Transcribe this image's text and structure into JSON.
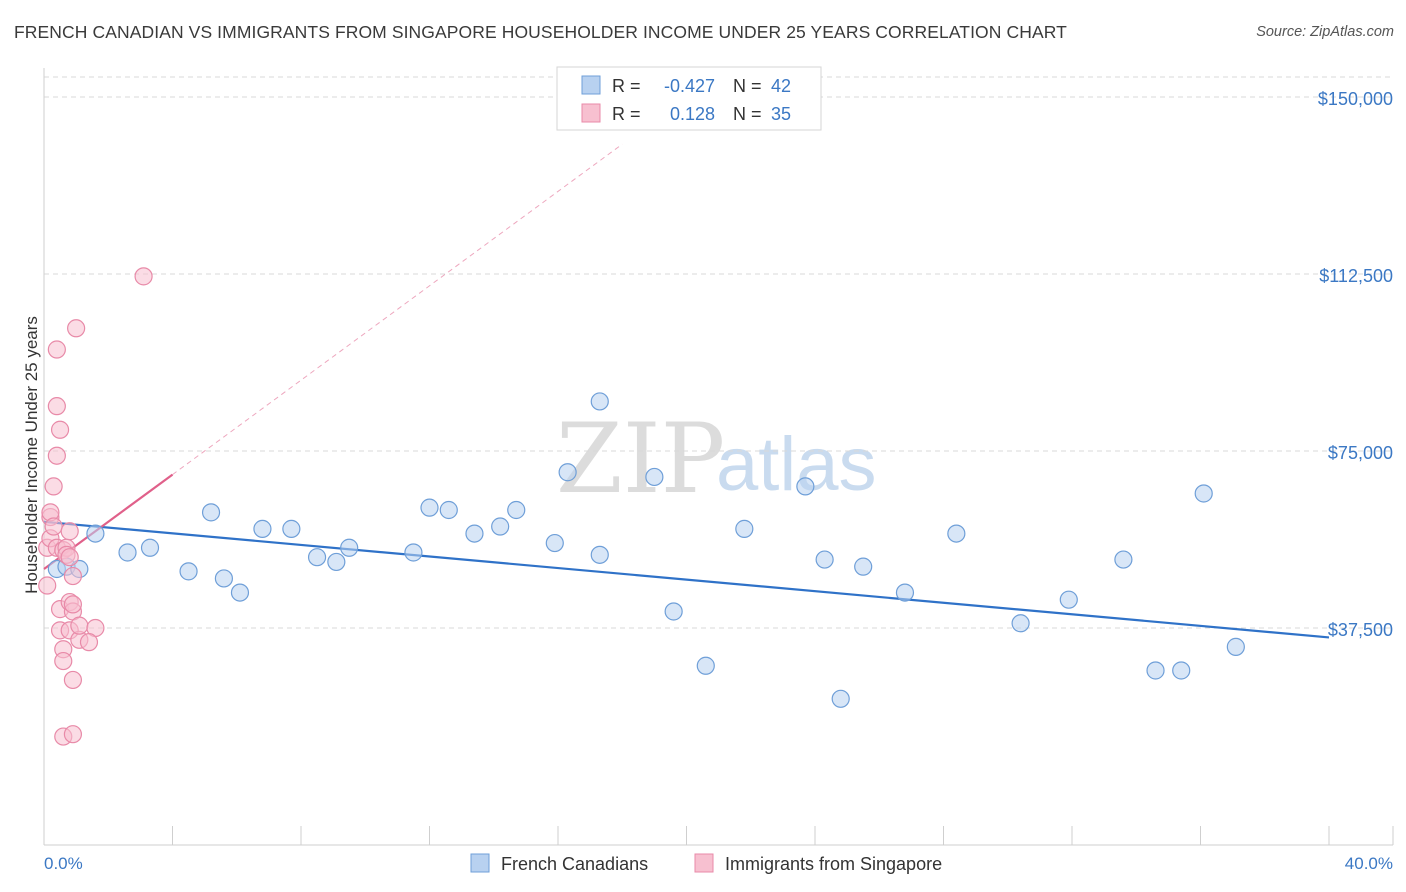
{
  "title": "FRENCH CANADIAN VS IMMIGRANTS FROM SINGAPORE HOUSEHOLDER INCOME UNDER 25 YEARS CORRELATION CHART",
  "source": "Source: ZipAtlas.com",
  "watermark": {
    "zip": "ZIP",
    "atlas": "atlas"
  },
  "colors": {
    "blue_fill": "#b8d1f0",
    "blue_stroke": "#6f9fd8",
    "blue_line": "#2f72c8",
    "pink_fill": "#f7c0d0",
    "pink_stroke": "#e88aa8",
    "pink_line": "#e0608a",
    "tick_text": "#3b78c4",
    "grid": "#d9d9d9"
  },
  "legend": {
    "rows": [
      {
        "r_label": "R =",
        "r_value": "-0.427",
        "n_label": "N =",
        "n_value": "42"
      },
      {
        "r_label": "R =",
        "r_value": "0.128",
        "n_label": "N =",
        "n_value": "35"
      }
    ]
  },
  "chart_data": {
    "type": "scatter",
    "title": "FRENCH CANADIAN VS IMMIGRANTS FROM SINGAPORE HOUSEHOLDER INCOME UNDER 25 YEARS CORRELATION CHART",
    "xlabel": "",
    "ylabel": "Householder Income Under 25 years",
    "xlim": [
      0,
      40
    ],
    "ylim": [
      0,
      150000
    ],
    "x_tick_labels": [
      "0.0%",
      "40.0%"
    ],
    "y_ticks": [
      37500,
      75000,
      112500,
      150000
    ],
    "y_tick_labels": [
      "$37,500",
      "$75,000",
      "$112,500",
      "$150,000"
    ],
    "grid": "horizontal dashed",
    "legend_placement": "top-center and bottom",
    "series": [
      {
        "name": "French Canadians",
        "color": "#6f9fd8",
        "r": -0.427,
        "n": 42,
        "trend": {
          "x": [
            0,
            40
          ],
          "y": [
            60000,
            35500
          ]
        },
        "points": [
          [
            0.4,
            50000
          ],
          [
            0.7,
            50500
          ],
          [
            1.1,
            50000
          ],
          [
            1.6,
            57500
          ],
          [
            2.6,
            53500
          ],
          [
            3.3,
            54500
          ],
          [
            4.5,
            49500
          ],
          [
            5.2,
            62000
          ],
          [
            5.6,
            48000
          ],
          [
            6.1,
            45000
          ],
          [
            6.8,
            58500
          ],
          [
            7.7,
            58500
          ],
          [
            8.5,
            52500
          ],
          [
            9.1,
            51500
          ],
          [
            9.5,
            54500
          ],
          [
            11.5,
            53500
          ],
          [
            12.0,
            63000
          ],
          [
            12.6,
            62500
          ],
          [
            13.4,
            57500
          ],
          [
            14.2,
            59000
          ],
          [
            14.7,
            62500
          ],
          [
            15.9,
            55500
          ],
          [
            16.3,
            70500
          ],
          [
            17.3,
            85500
          ],
          [
            17.3,
            53000
          ],
          [
            19.0,
            69500
          ],
          [
            19.6,
            41000
          ],
          [
            20.6,
            29500
          ],
          [
            21.8,
            58500
          ],
          [
            23.7,
            67500
          ],
          [
            24.3,
            52000
          ],
          [
            24.8,
            22500
          ],
          [
            25.5,
            50500
          ],
          [
            26.8,
            45000
          ],
          [
            28.4,
            57500
          ],
          [
            30.4,
            38500
          ],
          [
            31.9,
            43500
          ],
          [
            33.6,
            52000
          ],
          [
            36.1,
            66000
          ],
          [
            37.1,
            33500
          ],
          [
            34.6,
            28500
          ],
          [
            35.4,
            28500
          ]
        ]
      },
      {
        "name": "Immigrants from Singapore",
        "color": "#e88aa8",
        "r": 0.128,
        "n": 35,
        "trend": {
          "x": [
            0,
            4
          ],
          "y": [
            50000,
            70000
          ]
        },
        "trend_extension": {
          "x": [
            4,
            18
          ],
          "y": [
            70000,
            140000
          ]
        },
        "points": [
          [
            0.1,
            46500
          ],
          [
            0.1,
            54500
          ],
          [
            0.2,
            61000
          ],
          [
            0.2,
            62000
          ],
          [
            0.2,
            56500
          ],
          [
            0.3,
            67500
          ],
          [
            0.3,
            59000
          ],
          [
            0.4,
            84500
          ],
          [
            0.4,
            74000
          ],
          [
            0.4,
            96500
          ],
          [
            0.4,
            54500
          ],
          [
            0.5,
            79500
          ],
          [
            0.6,
            54000
          ],
          [
            0.5,
            37000
          ],
          [
            0.5,
            41500
          ],
          [
            0.6,
            33000
          ],
          [
            0.6,
            30500
          ],
          [
            0.6,
            14500
          ],
          [
            0.7,
            54500
          ],
          [
            0.7,
            53000
          ],
          [
            0.8,
            43000
          ],
          [
            0.8,
            37000
          ],
          [
            0.9,
            26500
          ],
          [
            0.9,
            41000
          ],
          [
            0.9,
            42500
          ],
          [
            0.8,
            58000
          ],
          [
            0.8,
            52500
          ],
          [
            0.9,
            48500
          ],
          [
            0.9,
            15000
          ],
          [
            1.0,
            101000
          ],
          [
            1.1,
            35000
          ],
          [
            1.1,
            38000
          ],
          [
            1.6,
            37500
          ],
          [
            1.4,
            34500
          ],
          [
            3.1,
            112000
          ]
        ]
      }
    ]
  }
}
